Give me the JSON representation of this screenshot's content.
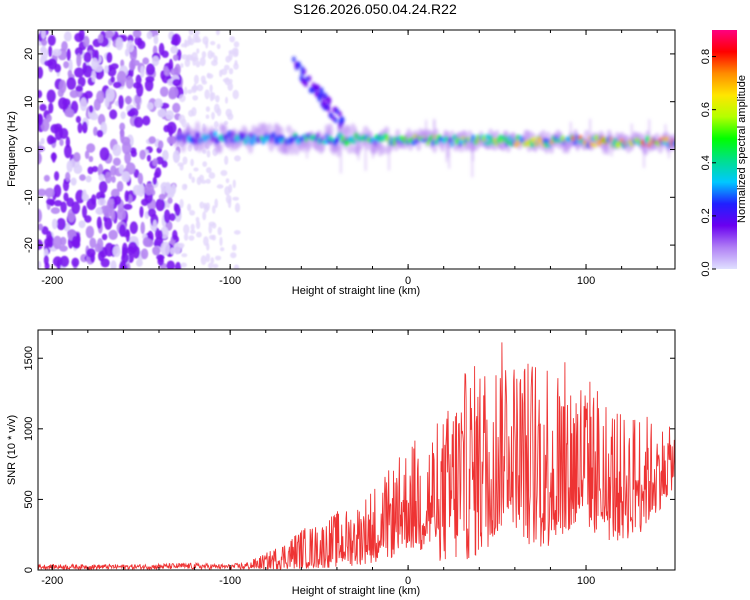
{
  "figure": {
    "title": "S126.2026.050.04.24.R22"
  },
  "chart_data": [
    {
      "type": "heatmap",
      "xlabel": "Height of straight line (km)",
      "ylabel": "Frequency (Hz)",
      "xlim": [
        -208,
        150
      ],
      "ylim": [
        -25,
        25
      ],
      "xticks": [
        -200,
        -100,
        0,
        100
      ],
      "xtick_labels": [
        "-200",
        "-100",
        "0",
        "100"
      ],
      "yticks": [
        -20,
        -10,
        0,
        10,
        20
      ],
      "ytick_labels": [
        "-20",
        "-10",
        "0",
        "10",
        "20"
      ],
      "colorbar": {
        "label": "Normalized spectral amplitude",
        "range": [
          0.0,
          0.9
        ],
        "ticks": [
          0.0,
          0.2,
          0.4,
          0.6,
          0.8
        ],
        "tick_labels": [
          "0.0",
          "0.2",
          "0.4",
          "0.6",
          "0.8"
        ],
        "colormap": [
          "#e0e0ff",
          "#b07ff5",
          "#6a00f0",
          "#2020ff",
          "#00c8ff",
          "#00e08c",
          "#00ff00",
          "#b4ff00",
          "#ffe600",
          "#ff8c00",
          "#ff0000",
          "#ff0080"
        ]
      },
      "features": [
        {
          "name": "noise-region",
          "x_range": [
            -208,
            -128
          ],
          "freq_range": [
            -25,
            25
          ],
          "amplitude": 0.15
        },
        {
          "name": "sparse-noise",
          "x_range": [
            -128,
            -95
          ],
          "freq_range": [
            -25,
            25
          ],
          "amplitude": 0.05
        },
        {
          "name": "main-ridge",
          "x_range": [
            -130,
            150
          ],
          "center_freq_start": 2.5,
          "center_freq_end": 1.5,
          "amplitude_start": 0.3,
          "amplitude_end": 0.8
        },
        {
          "name": "diagonal-streak",
          "x_range": [
            -65,
            -35
          ],
          "freq_range": [
            5,
            18
          ],
          "amplitude": 0.3
        }
      ]
    },
    {
      "type": "line",
      "xlabel": "Height of straight line (km)",
      "ylabel": "SNR (10 * v/v)",
      "xlim": [
        -208,
        150
      ],
      "ylim": [
        0,
        1700
      ],
      "xticks": [
        -200,
        -100,
        0,
        100
      ],
      "xtick_labels": [
        "-200",
        "-100",
        "0",
        "100"
      ],
      "yticks": [
        0,
        500,
        1000,
        1500
      ],
      "ytick_labels": [
        "0",
        "500",
        "1000",
        "1500"
      ],
      "series_color": "#ee3333",
      "envelope": {
        "x": [
          -208,
          -180,
          -150,
          -125,
          -100,
          -90,
          -80,
          -70,
          -60,
          -50,
          -40,
          -30,
          -20,
          -10,
          0,
          10,
          20,
          30,
          40,
          50,
          55,
          60,
          70,
          80,
          90,
          100,
          110,
          120,
          130,
          140,
          150
        ],
        "upper": [
          40,
          40,
          40,
          50,
          40,
          60,
          120,
          200,
          300,
          330,
          420,
          450,
          600,
          720,
          900,
          1000,
          1100,
          1400,
          1500,
          1550,
          1700,
          1500,
          1550,
          1600,
          1450,
          1400,
          1300,
          1100,
          1150,
          1050,
          1000
        ],
        "baseline": [
          5,
          5,
          5,
          5,
          5,
          5,
          5,
          5,
          10,
          10,
          20,
          30,
          50,
          80,
          150,
          100,
          50,
          50,
          100,
          200,
          400,
          300,
          150,
          150,
          200,
          300,
          200,
          200,
          250,
          400,
          600
        ]
      }
    }
  ]
}
